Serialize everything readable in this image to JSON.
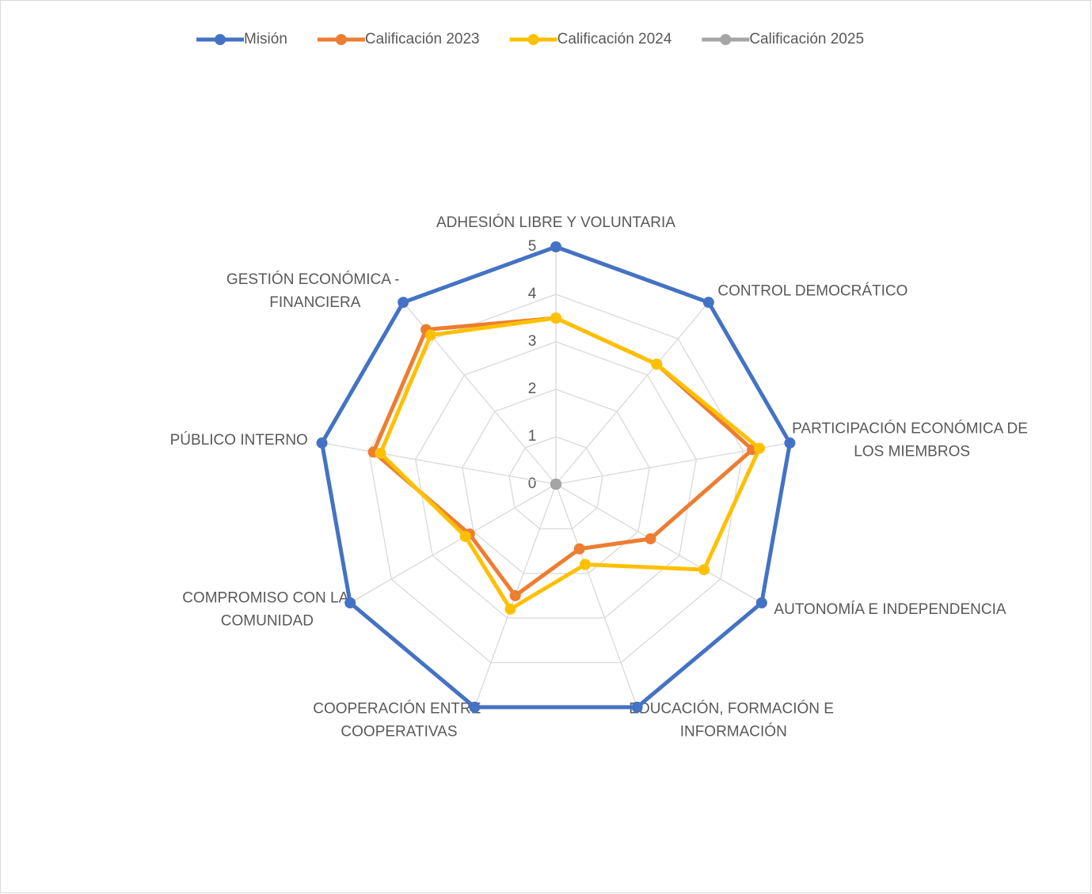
{
  "chart_data": {
    "type": "radar",
    "categories": [
      "ADHESIÓN LIBRE Y VOLUNTARIA",
      "CONTROL DEMOCRÁTICO",
      "PARTICIPACIÓN ECONÓMICA DE LOS MIEMBROS",
      "AUTONOMÍA E INDEPENDENCIA",
      "EDUCACIÓN, FORMACIÓN E INFORMACIÓN",
      "COOPERACIÓN ENTRE COOPERATIVAS",
      "COMPROMISO CON LA COMUNIDAD",
      "PÚBLICO INTERNO",
      "GESTIÓN ECONÓMICA - FINANCIERA"
    ],
    "series": [
      {
        "name": "Misión",
        "color": "#4472c4",
        "values": [
          5,
          5,
          5,
          5,
          5,
          5,
          5,
          5,
          5
        ]
      },
      {
        "name": "Calificación 2023",
        "color": "#ed7d31",
        "values": [
          3.5,
          3.3,
          4.2,
          2.3,
          1.45,
          2.5,
          2.1,
          3.9,
          4.25
        ]
      },
      {
        "name": "Calificación 2024",
        "color": "#ffc000",
        "values": [
          3.5,
          3.3,
          4.35,
          3.6,
          1.8,
          2.8,
          2.2,
          3.75,
          4.1
        ]
      },
      {
        "name": "Calificación 2025",
        "color": "#a5a5a5",
        "values": [
          0,
          0,
          0,
          0,
          0,
          0,
          0,
          0,
          0
        ]
      }
    ],
    "ylim": [
      0,
      5
    ],
    "yticks": [
      0,
      1,
      2,
      3,
      4,
      5
    ],
    "grid": true,
    "legend": "top"
  }
}
